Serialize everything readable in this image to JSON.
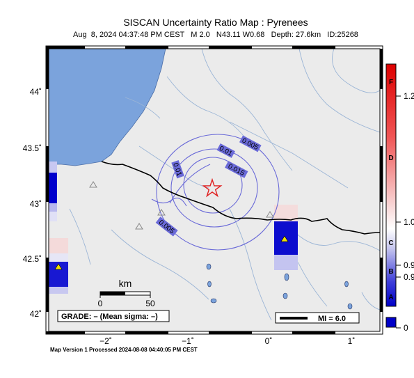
{
  "header": {
    "title": "SISCAN Uncertainty Ratio Map : Pyrenees",
    "subtitle": "Aug  8, 2024 04:37:48 PM CEST   M 2.0   N43.11 W0.68   Depth: 27.6km   ID:25268"
  },
  "map": {
    "lat_ticks": [
      "44˚",
      "43.5˚",
      "43˚",
      "42.5˚",
      "42˚"
    ],
    "lon_ticks": [
      "−2˚",
      "−1˚",
      "0˚",
      "1˚"
    ],
    "contour_labels": [
      "0.005",
      "0.01",
      "0.01",
      "0.015",
      "0.005"
    ],
    "scale_title": "km",
    "scale_ticks": [
      "0",
      "50"
    ],
    "grade_text": "GRADE: – (Mean sigma: –)",
    "mi_text": "MI = 6.0",
    "colors": {
      "sea": "#7ba3dc",
      "land": "#ebebeb",
      "river": "#9bb5d6",
      "contour": "#6a6ad8",
      "epicenter": "#e02020",
      "station": "#f0e000"
    }
  },
  "colorbar": {
    "letters": [
      "F",
      "D",
      "C",
      "B",
      "A"
    ],
    "values": [
      "1.2",
      "1.0",
      "0.9",
      "0.9",
      "0"
    ]
  },
  "footer": {
    "text": "Map Version 1 Processed 2024-08-08 04:40:05 PM CEST"
  }
}
